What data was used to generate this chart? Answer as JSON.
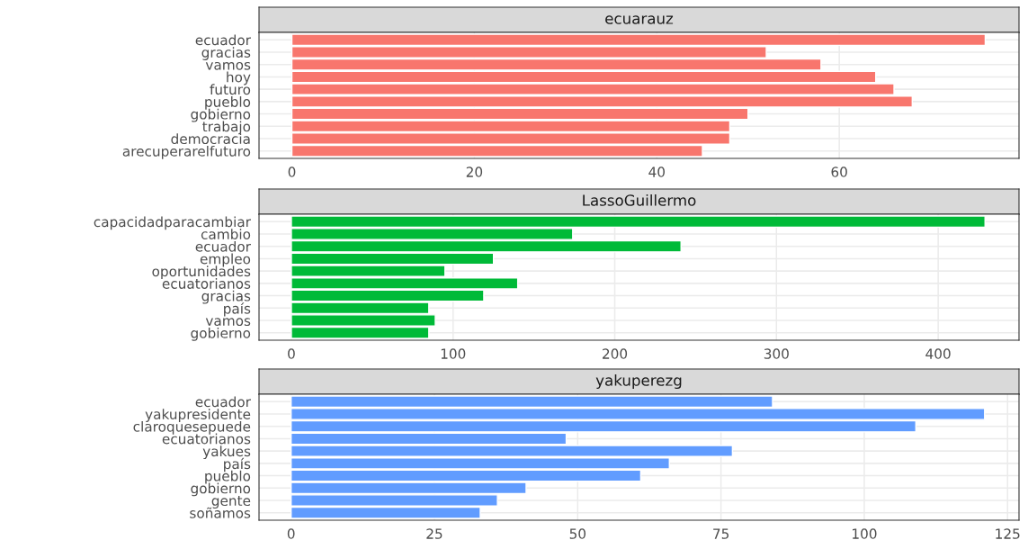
{
  "chart_data": [
    {
      "type": "bar",
      "orientation": "horizontal",
      "title": "ecuarauz",
      "categories": [
        "ecuador",
        "gracias",
        "vamos",
        "hoy",
        "futuro",
        "pueblo",
        "gobierno",
        "trabajo",
        "democracia",
        "arecuperarelfuturo"
      ],
      "values": [
        76,
        52,
        58,
        64,
        66,
        68,
        50,
        48,
        48,
        45
      ],
      "color": "#f8766d",
      "xlim": [
        -3.6,
        79.7
      ],
      "xticks": [
        0,
        20,
        40,
        60
      ],
      "grid": true
    },
    {
      "type": "bar",
      "orientation": "horizontal",
      "title": "LassoGuillermo",
      "categories": [
        "capacidadparacambiar",
        "cambio",
        "ecuador",
        "empleo",
        "oportunidades",
        "ecuatorianos",
        "gracias",
        "país",
        "vamos",
        "gobierno"
      ],
      "values": [
        429,
        174,
        241,
        125,
        95,
        140,
        119,
        85,
        89,
        85
      ],
      "color": "#00ba38",
      "xlim": [
        -20,
        450
      ],
      "xticks": [
        0,
        100,
        200,
        300,
        400
      ],
      "grid": true
    },
    {
      "type": "bar",
      "orientation": "horizontal",
      "title": "yakuperezg",
      "categories": [
        "ecuador",
        "yakupresidente",
        "claroquesepuede",
        "ecuatorianos",
        "yakues",
        "país",
        "pueblo",
        "gobierno",
        "gente",
        "soñamos"
      ],
      "values": [
        84,
        121,
        109,
        48,
        77,
        66,
        61,
        41,
        36,
        33
      ],
      "color": "#619cff",
      "xlim": [
        -5.6,
        127
      ],
      "xticks": [
        0,
        25,
        50,
        75,
        100,
        125
      ],
      "grid": true
    }
  ]
}
